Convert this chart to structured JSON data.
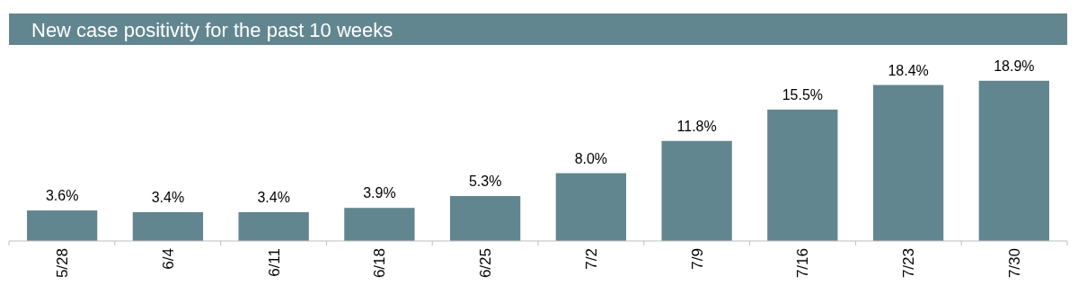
{
  "chart_data": {
    "type": "bar",
    "title": "New case positivity for the past 10 weeks",
    "categories": [
      "5/28",
      "6/4",
      "6/11",
      "6/18",
      "6/25",
      "7/2",
      "7/9",
      "7/16",
      "7/23",
      "7/30"
    ],
    "values": [
      3.6,
      3.4,
      3.4,
      3.9,
      5.3,
      8.0,
      11.8,
      15.5,
      18.4,
      18.9
    ],
    "value_labels": [
      "3.6%",
      "3.4%",
      "3.4%",
      "3.9%",
      "5.3%",
      "8.0%",
      "11.8%",
      "15.5%",
      "18.4%",
      "18.9%"
    ],
    "color": "#62868f"
  }
}
